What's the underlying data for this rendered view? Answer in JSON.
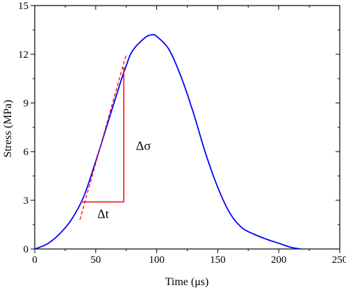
{
  "chart_data": {
    "type": "line",
    "xlabel": "Time (μs)",
    "ylabel": "Stress (MPa)",
    "xlim": [
      0,
      250
    ],
    "ylim": [
      0,
      15
    ],
    "xticks": [
      0,
      50,
      100,
      150,
      200,
      250
    ],
    "yticks": [
      0,
      3,
      6,
      9,
      12,
      15
    ],
    "grid": false,
    "colors": {
      "curve": "#0000ff",
      "annotation": "#ff0000",
      "axes": "#000000"
    },
    "series": [
      {
        "x": [
          0,
          10,
          20,
          30,
          40,
          50,
          60,
          70,
          75,
          80,
          90,
          96,
          100,
          110,
          120,
          130,
          140,
          150,
          160,
          170,
          180,
          190,
          200,
          210,
          218
        ],
        "y": [
          0,
          0.3,
          0.9,
          1.8,
          3.2,
          5.4,
          7.8,
          10.2,
          11.3,
          12.2,
          13.0,
          13.2,
          13.1,
          12.3,
          10.6,
          8.4,
          5.9,
          3.8,
          2.2,
          1.3,
          0.9,
          0.6,
          0.35,
          0.1,
          0
        ]
      }
    ],
    "tangent_line": {
      "x": [
        37,
        75
      ],
      "y": [
        1.8,
        12.0
      ]
    },
    "delta_triangle": {
      "x": [
        38,
        73
      ],
      "y": [
        2.9,
        11.2
      ]
    },
    "annotations": [
      {
        "text": "Δσ",
        "x": 89,
        "y": 6.1
      },
      {
        "text": "Δt",
        "x": 56,
        "y": 1.9
      }
    ]
  }
}
